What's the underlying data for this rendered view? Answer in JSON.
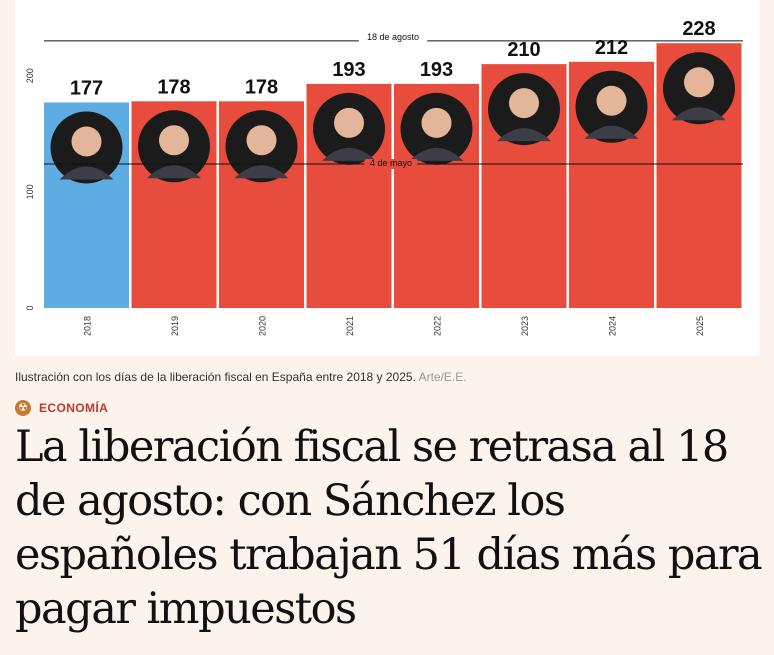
{
  "chart_data": {
    "type": "bar",
    "categories": [
      "2018",
      "2019",
      "2020",
      "2021",
      "2022",
      "2023",
      "2024",
      "2025"
    ],
    "values": [
      177,
      178,
      178,
      193,
      193,
      210,
      212,
      228
    ],
    "value_labels": [
      "177",
      "178",
      "178",
      "193",
      "193",
      "210",
      "212",
      "228"
    ],
    "y_ticks": [
      0,
      100,
      200
    ],
    "ylim": [
      0,
      248
    ],
    "bar_colors": [
      "#5dade2",
      "#e74c3c",
      "#e74c3c",
      "#e74c3c",
      "#e74c3c",
      "#e74c3c",
      "#e74c3c",
      "#e74c3c"
    ],
    "reference_lines": [
      {
        "label": "18 de agosto",
        "value": 230
      },
      {
        "label": "4 de mayo",
        "value": 124
      }
    ]
  },
  "caption": {
    "text": "Ilustración con los días de la liberación fiscal en España entre 2018 y 2025.",
    "credit": "Arte/E.E."
  },
  "section": {
    "icon": "radiation-icon",
    "label": "ECONOMÍA"
  },
  "headline": "La liberación fiscal se retrasa al 18 de agosto: con Sánchez los españoles trabajan 51 días más para pagar impuestos"
}
